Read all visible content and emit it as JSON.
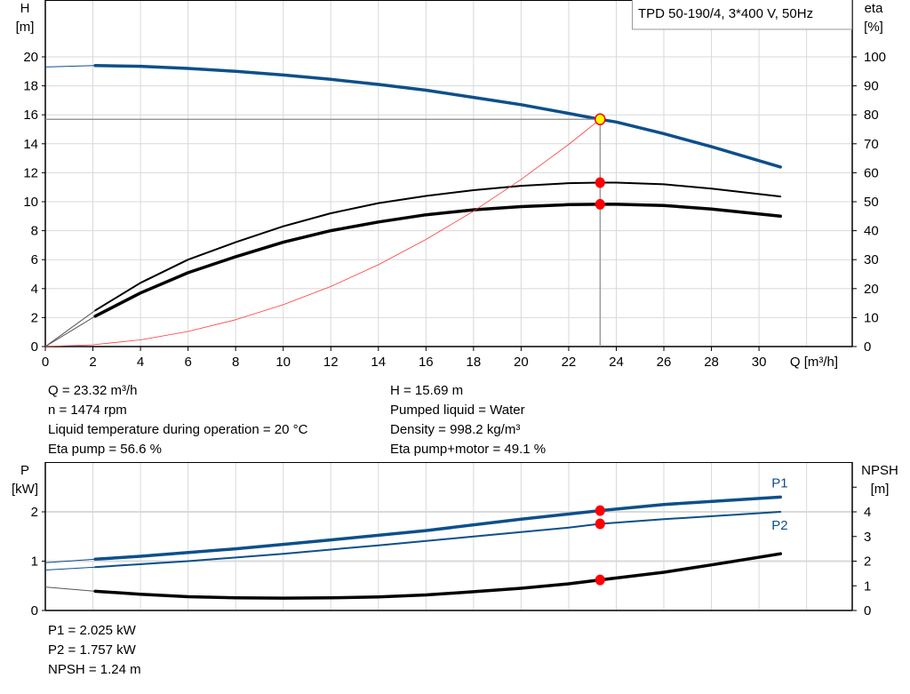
{
  "chart_data": [
    {
      "type": "line",
      "title": "",
      "legend_box": "TPD 50-190/4, 3*400 V, 50Hz",
      "xlabel": "Q [m³/h]",
      "ylabel_left": [
        "H",
        "[m]"
      ],
      "ylabel_right": [
        "eta",
        "[%]"
      ],
      "xlim": [
        0,
        34
      ],
      "ylim_left": [
        0,
        24
      ],
      "ylim_right": [
        0,
        120
      ],
      "x_ticks": [
        0,
        2,
        4,
        6,
        8,
        10,
        12,
        14,
        16,
        18,
        20,
        22,
        24,
        26,
        28,
        30
      ],
      "y_ticks_left": [
        0,
        2,
        4,
        6,
        8,
        10,
        12,
        14,
        16,
        18,
        20
      ],
      "y_ticks_right": [
        0,
        10,
        20,
        30,
        40,
        50,
        60,
        70,
        80,
        90,
        100
      ],
      "grid": true,
      "operating_point": {
        "Q": 23.32,
        "H": 15.69,
        "eta_pump": 56.6,
        "eta_pump_motor": 49.1
      },
      "series": [
        {
          "key": "H",
          "axis": "left",
          "color": "#0d4f8b",
          "x": [
            2.1,
            4,
            6,
            8,
            10,
            12,
            14,
            16,
            18,
            20,
            22,
            23.32,
            24,
            26,
            28,
            30.9
          ],
          "y": [
            19.4,
            19.35,
            19.2,
            19.0,
            18.75,
            18.45,
            18.1,
            17.7,
            17.2,
            16.7,
            16.1,
            15.69,
            15.5,
            14.7,
            13.8,
            12.4
          ],
          "extrapolated": {
            "x": [
              0,
              2.1
            ],
            "y": [
              19.3,
              19.4
            ]
          }
        },
        {
          "key": "eta_pump",
          "axis": "right",
          "color": "#000000",
          "x": [
            2.1,
            4,
            6,
            8,
            10,
            12,
            14,
            16,
            18,
            20,
            22,
            23.32,
            24,
            26,
            28,
            30.9
          ],
          "y": [
            12.5,
            22,
            30,
            36,
            41.5,
            46,
            49.5,
            52,
            54,
            55.5,
            56.4,
            56.6,
            56.6,
            56,
            54.5,
            51.8
          ],
          "extrapolated": {
            "x": [
              0,
              2.1
            ],
            "y": [
              0,
              12.5
            ]
          }
        },
        {
          "key": "eta_pump_motor",
          "axis": "right",
          "color": "#000000",
          "x": [
            2.1,
            4,
            6,
            8,
            10,
            12,
            14,
            16,
            18,
            20,
            22,
            23.32,
            24,
            26,
            28,
            30.9
          ],
          "y": [
            10.5,
            18.5,
            25.5,
            31,
            36,
            40,
            43,
            45.5,
            47.2,
            48.3,
            49,
            49.1,
            49.1,
            48.7,
            47.5,
            45
          ],
          "extrapolated": {
            "x": [
              0,
              2.1
            ],
            "y": [
              0,
              10.5
            ]
          }
        },
        {
          "key": "system_curve",
          "axis": "left",
          "color": "#ff3b3b",
          "x": [
            0,
            2,
            4,
            6,
            8,
            10,
            12,
            14,
            16,
            18,
            20,
            22,
            23.32
          ],
          "y": [
            0,
            0.12,
            0.46,
            1.04,
            1.85,
            2.89,
            4.15,
            5.65,
            7.39,
            9.35,
            11.54,
            13.96,
            15.69
          ]
        }
      ]
    },
    {
      "type": "line",
      "title": "",
      "ylabel_left": [
        "P",
        "[kW]"
      ],
      "ylabel_right": [
        "NPSH",
        "[m]"
      ],
      "xlim": [
        0,
        34
      ],
      "ylim_left": [
        0,
        3
      ],
      "ylim_right": [
        0,
        6
      ],
      "y_ticks_left": [
        0,
        1,
        2
      ],
      "y_ticks_right": [
        0,
        1,
        2,
        3,
        4,
        5
      ],
      "y_tick_labels_right": [
        "0",
        "1",
        "2",
        "3",
        "4",
        ""
      ],
      "grid": true,
      "operating_point": {
        "Q": 23.32,
        "P1": 2.025,
        "P2": 1.757,
        "NPSH": 1.24
      },
      "series": [
        {
          "key": "P1",
          "name": "P1",
          "axis": "left",
          "color": "#0d4f8b",
          "x": [
            2.1,
            4,
            8,
            12,
            16,
            20,
            23.32,
            26,
            30.9
          ],
          "y": [
            1.04,
            1.1,
            1.25,
            1.43,
            1.62,
            1.85,
            2.025,
            2.15,
            2.3
          ],
          "extrapolated": {
            "x": [
              0,
              2.1
            ],
            "y": [
              0.97,
              1.04
            ]
          }
        },
        {
          "key": "P2",
          "name": "P2",
          "axis": "left",
          "color": "#0d4f8b",
          "x": [
            2.1,
            6,
            10,
            14,
            18,
            22,
            23.32,
            26,
            30.9
          ],
          "y": [
            0.88,
            1.0,
            1.15,
            1.32,
            1.5,
            1.68,
            1.757,
            1.85,
            2.0
          ],
          "extrapolated": {
            "x": [
              0,
              2.1
            ],
            "y": [
              0.82,
              0.88
            ]
          }
        },
        {
          "key": "NPSH",
          "axis": "right",
          "color": "#000000",
          "x": [
            2.1,
            4,
            6,
            8,
            10,
            12,
            14,
            16,
            18,
            20,
            22,
            23.32,
            26,
            28,
            30.9
          ],
          "y": [
            0.78,
            0.66,
            0.56,
            0.51,
            0.5,
            0.51,
            0.55,
            0.63,
            0.76,
            0.9,
            1.08,
            1.24,
            1.55,
            1.85,
            2.3
          ],
          "extrapolated": {
            "x": [
              0,
              2.1
            ],
            "y": [
              0.95,
              0.78
            ]
          }
        }
      ]
    }
  ],
  "info_top": {
    "left": [
      "Q = 23.32 m³/h",
      "n = 1474 rpm",
      "Liquid temperature during operation = 20 °C",
      "Eta pump = 56.6 %"
    ],
    "right": [
      "H = 15.69 m",
      "Pumped liquid = Water",
      "Density = 998.2 kg/m³",
      "Eta pump+motor = 49.1 %"
    ]
  },
  "info_bottom": [
    "P1 = 2.025 kW",
    "P2 = 1.757 kW",
    "NPSH = 1.24 m"
  ],
  "colors": {
    "grid": "#d9d9d9",
    "marker": "#ff0000",
    "op_marker_fill": "#ffff00"
  }
}
